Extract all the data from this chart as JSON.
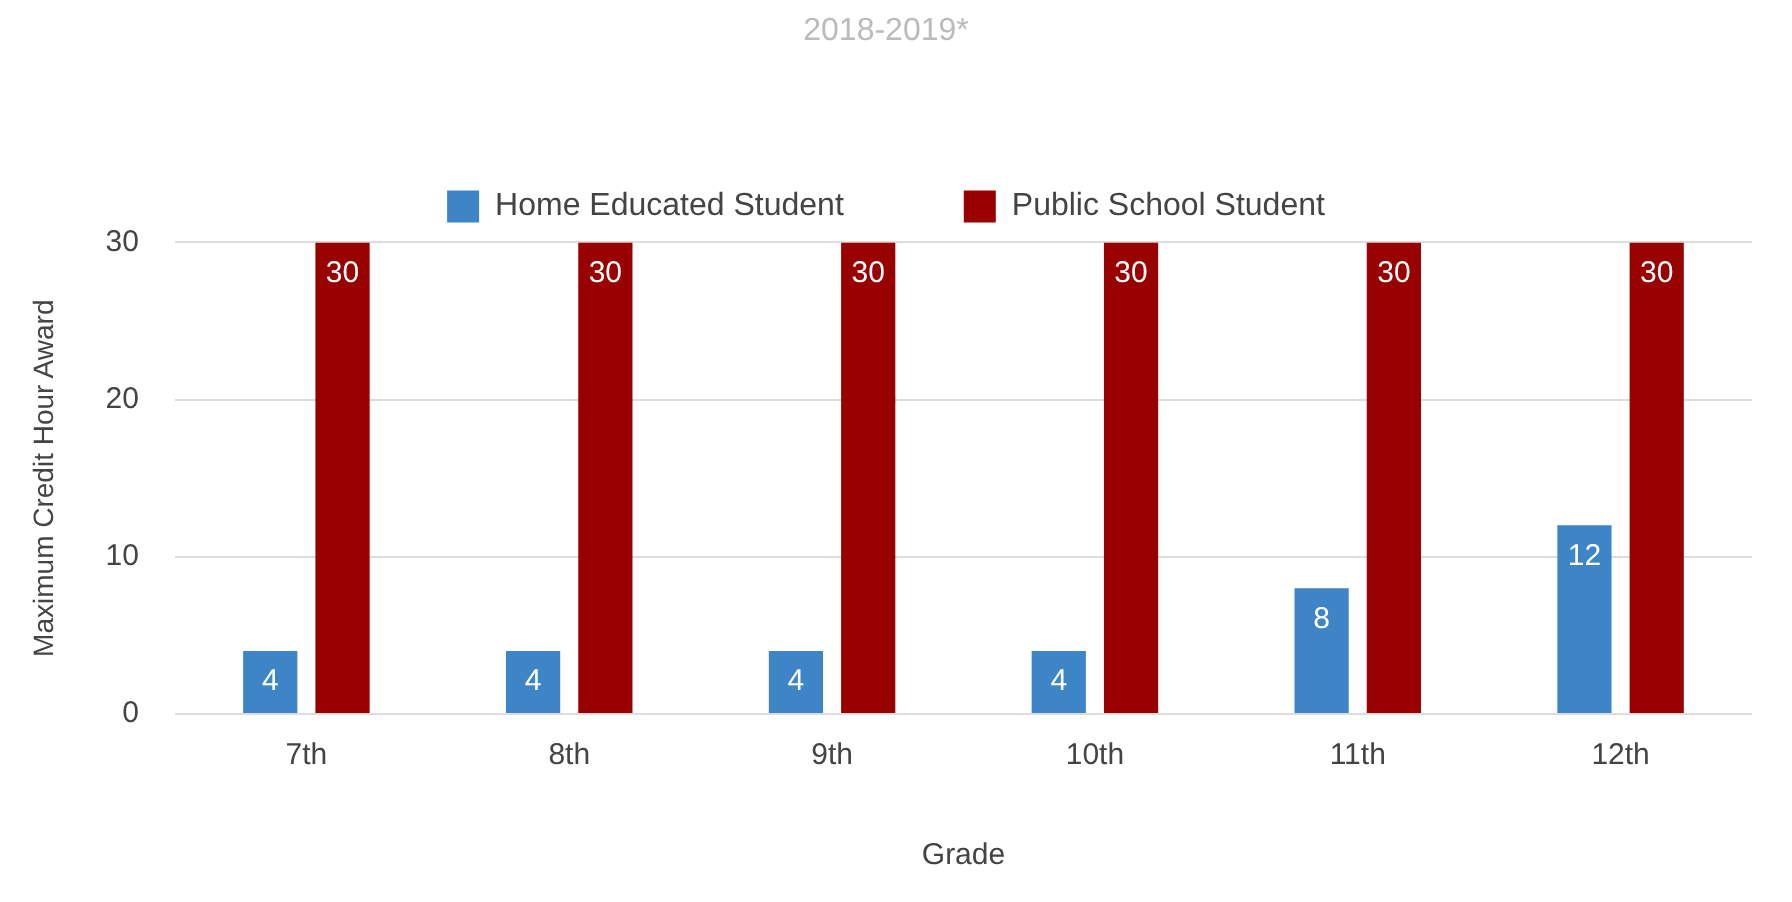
{
  "chart_data": {
    "type": "bar",
    "title": "2018-2019*",
    "xlabel": "Grade",
    "ylabel": "Maximum Credit Hour Award",
    "categories": [
      "7th",
      "8th",
      "9th",
      "10th",
      "11th",
      "12th"
    ],
    "series": [
      {
        "name": "Home Educated Student",
        "color": "#3d85c6",
        "values": [
          4,
          4,
          4,
          4,
          8,
          12
        ]
      },
      {
        "name": "Public School Student",
        "color": "#990000",
        "values": [
          30,
          30,
          30,
          30,
          30,
          30
        ]
      }
    ],
    "ylim": [
      0,
      30
    ],
    "yticks": [
      0,
      10,
      20,
      30
    ],
    "grid": "y",
    "legend": "top",
    "data_labels": true
  }
}
